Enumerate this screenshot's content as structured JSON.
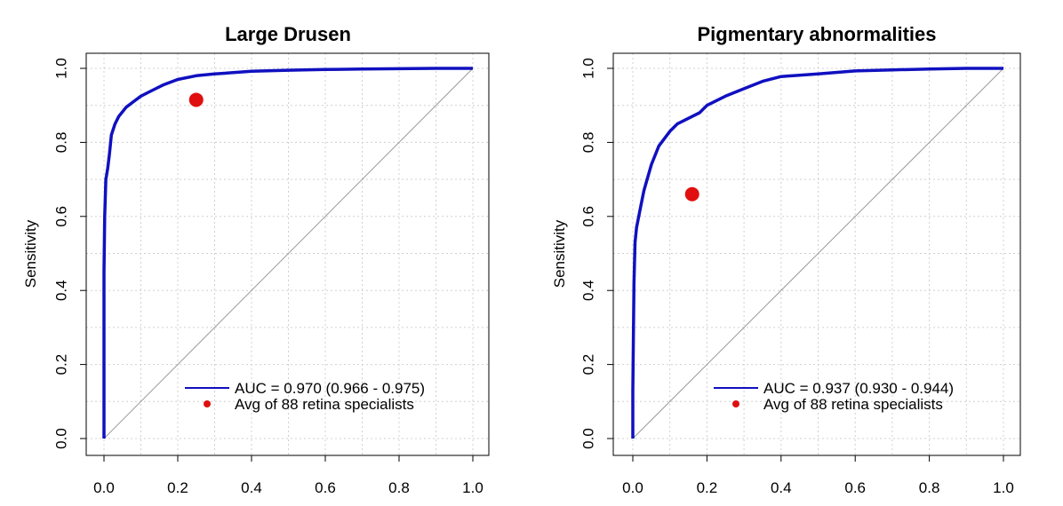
{
  "chart_data": [
    {
      "type": "line",
      "title": "Large Drusen",
      "xlabel": "",
      "ylabel": "Sensitivity",
      "xlim": [
        0,
        1
      ],
      "ylim": [
        0,
        1
      ],
      "x_ticks": [
        "0.0",
        "0.2",
        "0.4",
        "0.6",
        "0.8",
        "1.0"
      ],
      "y_ticks": [
        "0.0",
        "0.2",
        "0.4",
        "0.6",
        "0.8",
        "1.0"
      ],
      "grid": true,
      "series": [
        {
          "name": "AUC = 0.970 (0.966 - 0.975)",
          "color": "#1010c0",
          "x": [
            0,
            0,
            0.002,
            0.005,
            0.01,
            0.015,
            0.02,
            0.03,
            0.04,
            0.06,
            0.08,
            0.1,
            0.13,
            0.16,
            0.2,
            0.25,
            0.3,
            0.4,
            0.5,
            0.6,
            0.7,
            0.8,
            0.9,
            1.0
          ],
          "y": [
            0,
            0.45,
            0.6,
            0.7,
            0.73,
            0.77,
            0.82,
            0.85,
            0.87,
            0.895,
            0.91,
            0.925,
            0.94,
            0.955,
            0.97,
            0.98,
            0.985,
            0.992,
            0.995,
            0.997,
            0.998,
            0.999,
            1.0,
            1.0
          ]
        }
      ],
      "points": [
        {
          "name": "Avg of 88 retina specialists",
          "color": "#e01010",
          "x": 0.25,
          "y": 0.915
        }
      ],
      "legend": {
        "placement": "bottom-right",
        "line_label": "AUC = 0.970 (0.966 - 0.975)",
        "point_label": "Avg of 88 retina specialists"
      }
    },
    {
      "type": "line",
      "title": "Pigmentary abnormalities",
      "xlabel": "",
      "ylabel": "Sensitivity",
      "xlim": [
        0,
        1
      ],
      "ylim": [
        0,
        1
      ],
      "x_ticks": [
        "0.0",
        "0.2",
        "0.4",
        "0.6",
        "0.8",
        "1.0"
      ],
      "y_ticks": [
        "0.0",
        "0.2",
        "0.4",
        "0.6",
        "0.8",
        "1.0"
      ],
      "grid": true,
      "series": [
        {
          "name": "AUC = 0.937 (0.930 - 0.944)",
          "color": "#1010c0",
          "x": [
            0,
            0,
            0.003,
            0.006,
            0.01,
            0.02,
            0.03,
            0.05,
            0.07,
            0.1,
            0.12,
            0.15,
            0.18,
            0.2,
            0.25,
            0.3,
            0.35,
            0.4,
            0.5,
            0.6,
            0.7,
            0.8,
            0.9,
            1.0
          ],
          "y": [
            0,
            0.13,
            0.42,
            0.53,
            0.57,
            0.62,
            0.67,
            0.74,
            0.79,
            0.83,
            0.85,
            0.865,
            0.88,
            0.9,
            0.925,
            0.945,
            0.965,
            0.978,
            0.985,
            0.993,
            0.996,
            0.998,
            1.0,
            1.0
          ]
        }
      ],
      "points": [
        {
          "name": "Avg of 88 retina specialists",
          "color": "#e01010",
          "x": 0.16,
          "y": 0.66
        }
      ],
      "legend": {
        "placement": "bottom-right",
        "line_label": "AUC = 0.937 (0.930 - 0.944)",
        "point_label": "Avg of 88 retina specialists"
      }
    }
  ]
}
